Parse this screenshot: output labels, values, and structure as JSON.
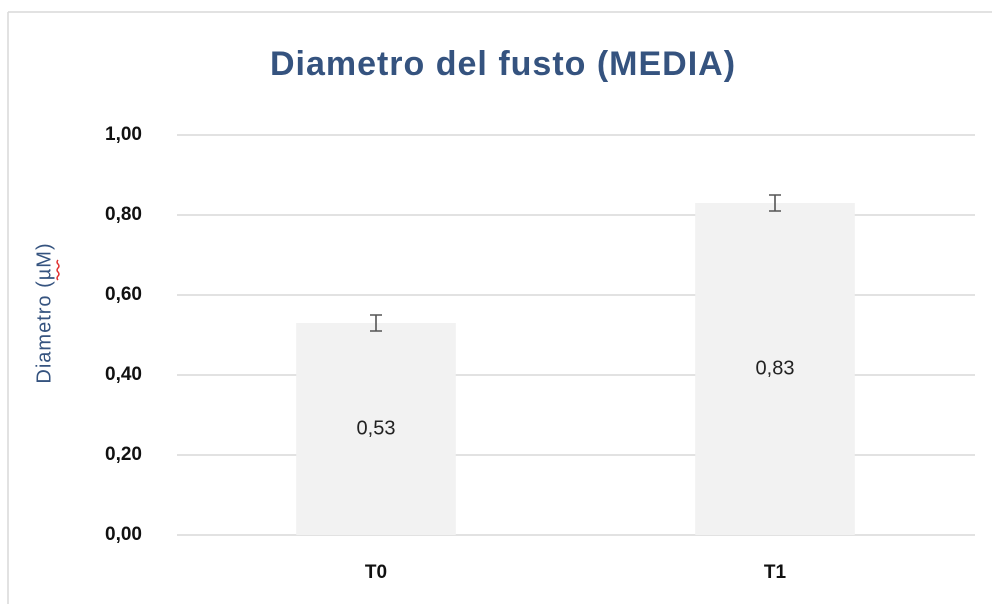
{
  "chart_data": {
    "type": "bar",
    "title": "Diametro del fusto (MEDIA)",
    "ylabel": "Diametro (µM)",
    "categories": [
      "T0",
      "T1"
    ],
    "values": [
      0.53,
      0.83
    ],
    "value_labels": [
      "0,53",
      "0,83"
    ],
    "errors": [
      0.02,
      0.02
    ],
    "color": "#f2f2f2",
    "ylim": [
      0,
      1
    ],
    "yticks": [
      {
        "value": 0,
        "label": "0,00"
      },
      {
        "value": 0.2,
        "label": "0,20"
      },
      {
        "value": 0.4,
        "label": "0,40"
      },
      {
        "value": 0.6,
        "label": "0,60"
      },
      {
        "value": 0.8,
        "label": "0,80"
      },
      {
        "value": 1,
        "label": "1,00"
      }
    ],
    "grid": true
  }
}
